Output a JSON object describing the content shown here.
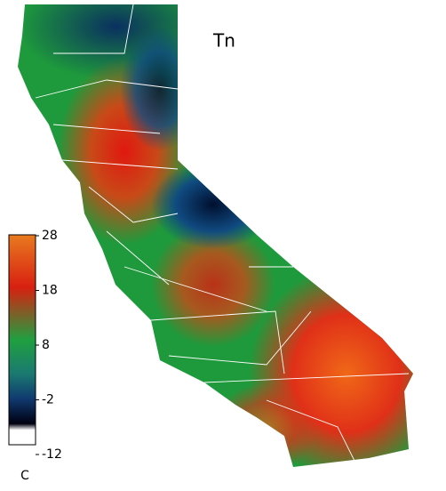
{
  "map": {
    "title": "Tn",
    "colorbar": {
      "label": "C",
      "lim": [
        -12,
        28
      ],
      "ticks": [
        -12,
        -2,
        8,
        18,
        28
      ]
    }
  }
}
